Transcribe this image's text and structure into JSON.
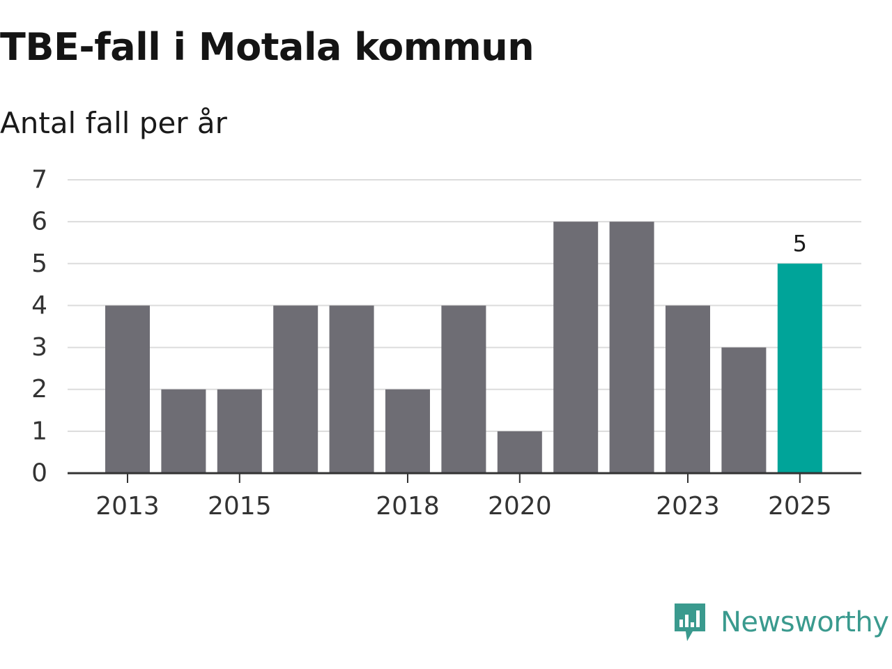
{
  "chart_data": {
    "type": "bar",
    "title": "TBE-fall i Motala kommun",
    "subtitle": "Antal fall per år",
    "categories": [
      "2013",
      "2014",
      "2015",
      "2016",
      "2017",
      "2018",
      "2019",
      "2020",
      "2021",
      "2022",
      "2023",
      "2024",
      "2025"
    ],
    "values": [
      4,
      2,
      2,
      4,
      4,
      2,
      4,
      1,
      6,
      6,
      4,
      3,
      5
    ],
    "x_tick_labels": [
      "2013",
      "2015",
      "2018",
      "2020",
      "2023",
      "2025"
    ],
    "y_ticks": [
      0,
      1,
      2,
      3,
      4,
      5,
      6,
      7
    ],
    "ylim": [
      0,
      7
    ],
    "xlabel": "",
    "ylabel": "",
    "grid": true,
    "highlight": {
      "category": "2025",
      "label": "5"
    },
    "colors": {
      "bar": "#6e6d74",
      "highlight": "#00a499",
      "grid": "#dcdcdc",
      "axis": "#333333"
    }
  },
  "brand": {
    "name": "Newsworthy",
    "icon": "newsworthy-logo-icon",
    "color": "#3a9a8e"
  }
}
